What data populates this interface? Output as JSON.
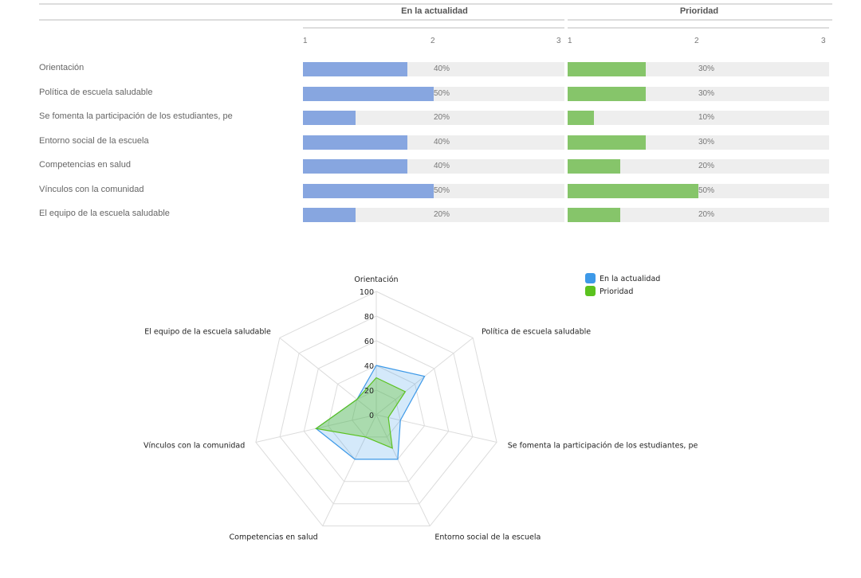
{
  "bar_table": {
    "col1_title": "En la actualidad",
    "col2_title": "Prioridad",
    "scale_ticks": [
      "1",
      "2",
      "3"
    ],
    "colors": {
      "current": "#87a6e0",
      "priority": "#86c56a",
      "track": "#eeeeee"
    },
    "rows": [
      {
        "label": "Orientación",
        "current_pct": "40%",
        "current": 40,
        "priority_pct": "30%",
        "priority": 30
      },
      {
        "label": "Política de escuela saludable",
        "current_pct": "50%",
        "current": 50,
        "priority_pct": "30%",
        "priority": 30
      },
      {
        "label": "Se fomenta la participación de los estudiantes, pe",
        "current_pct": "20%",
        "current": 20,
        "priority_pct": "10%",
        "priority": 10
      },
      {
        "label": "Entorno social de la escuela",
        "current_pct": "40%",
        "current": 40,
        "priority_pct": "30%",
        "priority": 30
      },
      {
        "label": "Competencias en salud",
        "current_pct": "40%",
        "current": 40,
        "priority_pct": "20%",
        "priority": 20
      },
      {
        "label": "Vínculos con la comunidad",
        "current_pct": "50%",
        "current": 50,
        "priority_pct": "50%",
        "priority": 50
      },
      {
        "label": "El equipo de la escuela saludable",
        "current_pct": "20%",
        "current": 20,
        "priority_pct": "20%",
        "priority": 20
      }
    ]
  },
  "chart_data": {
    "type": "radar",
    "categories": [
      "Orientación",
      "Política de escuela saludable",
      "Se fomenta la participación de los estudiantes, pe",
      "Entorno social de la escuela",
      "Competencias en salud",
      "Vínculos con la comunidad",
      "El equipo de la escuela saludable"
    ],
    "series": [
      {
        "name": "En la actualidad",
        "values": [
          40,
          50,
          20,
          40,
          40,
          50,
          20
        ],
        "color": "#3d99e8"
      },
      {
        "name": "Prioridad",
        "values": [
          30,
          30,
          10,
          30,
          20,
          50,
          20
        ],
        "color": "#5bc21f"
      }
    ],
    "rlim": [
      0,
      100
    ],
    "r_ticks": [
      "0",
      "20",
      "40",
      "60",
      "80",
      "100"
    ],
    "grid": true,
    "legend": "top-right"
  }
}
